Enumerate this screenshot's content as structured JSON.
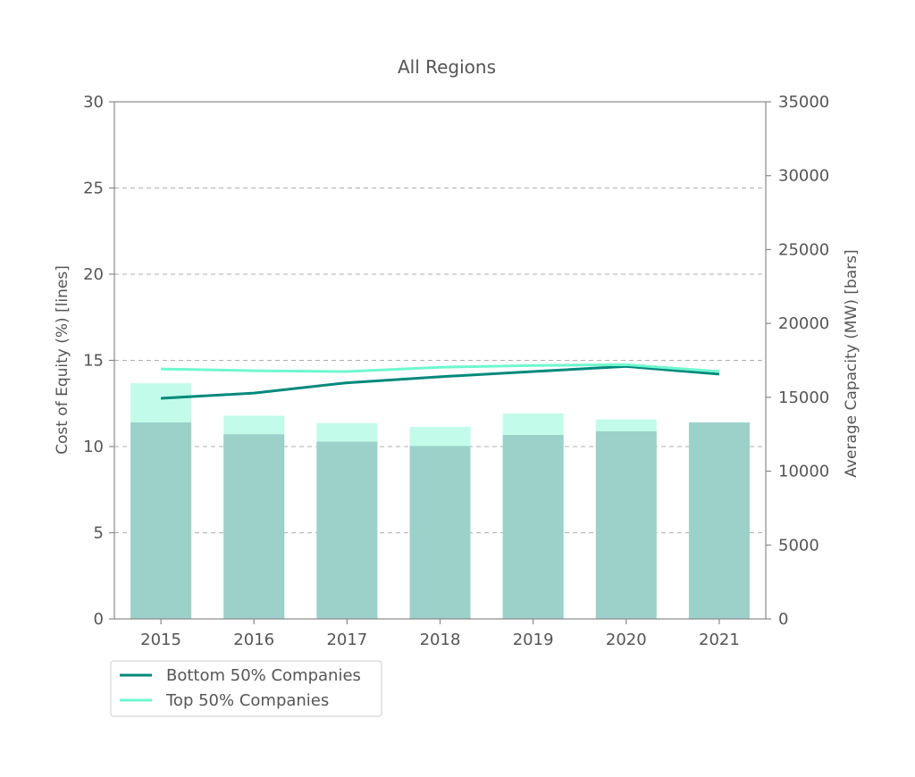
{
  "chart_data": {
    "type": "bar",
    "title": "All Regions",
    "categories": [
      "2015",
      "2016",
      "2017",
      "2018",
      "2019",
      "2020",
      "2021"
    ],
    "y_left": {
      "label": "Cost of Equity (%) [lines]",
      "range": [
        0,
        30
      ],
      "ticks": [
        "0",
        "5",
        "10",
        "15",
        "20",
        "25",
        "30"
      ]
    },
    "y_right": {
      "label": "Average Capacity (MW) [bars]",
      "range": [
        0,
        35000
      ],
      "ticks": [
        "0",
        "5000",
        "10000",
        "15000",
        "20000",
        "25000",
        "30000",
        "35000"
      ]
    },
    "grid": "horizontal dashed",
    "legend_position": "bottom-left",
    "bar_series": [
      {
        "series": "Top 50% Companies",
        "values": [
          15950,
          13750,
          13250,
          13000,
          13900,
          13500,
          13300
        ],
        "color": "#c2fbe9"
      },
      {
        "series": "Bottom 50% Companies",
        "values": [
          13300,
          12500,
          12000,
          11700,
          12450,
          12700,
          13300
        ],
        "color": "#9bd1c8"
      }
    ],
    "line_series": [
      {
        "name": "Bottom 50% Companies",
        "values": [
          12.8,
          13.1,
          13.7,
          14.05,
          14.35,
          14.65,
          14.2
        ],
        "color": "#00897b"
      },
      {
        "name": "Top 50% Companies",
        "values": [
          14.5,
          14.4,
          14.35,
          14.6,
          14.7,
          14.75,
          14.35
        ],
        "color": "#6ff7cf"
      }
    ]
  }
}
